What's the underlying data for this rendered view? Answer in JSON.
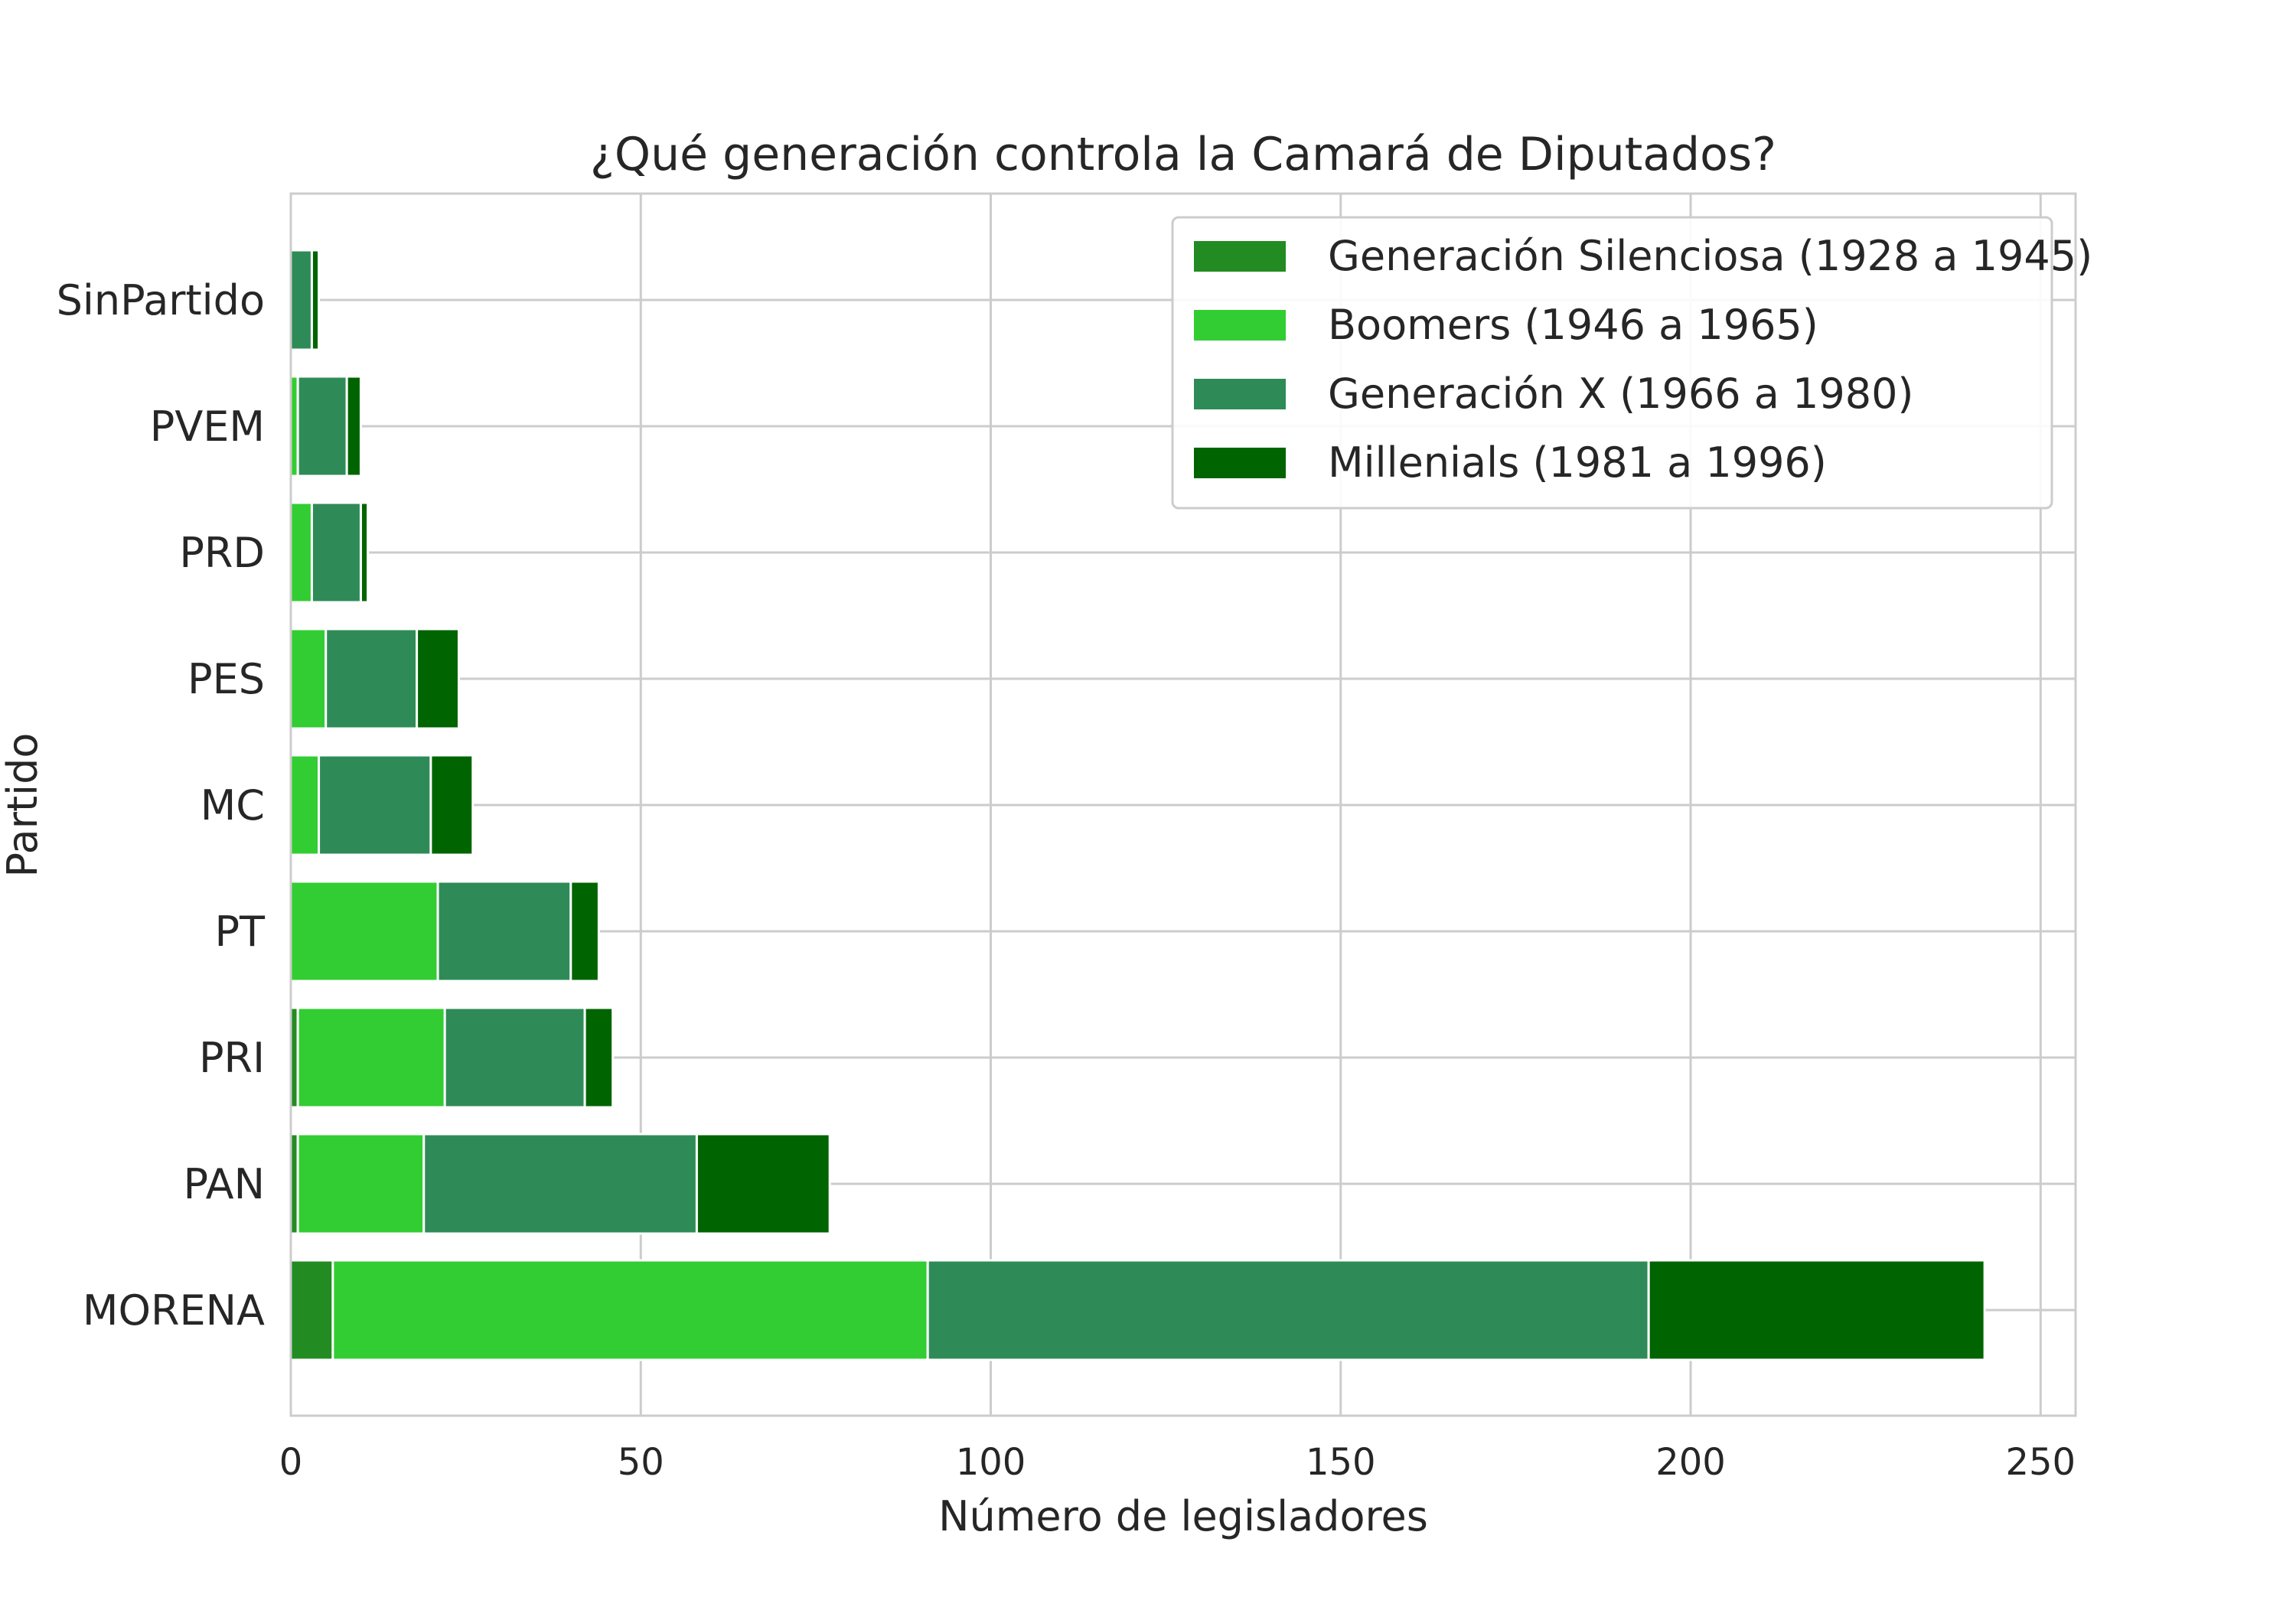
{
  "chart_data": {
    "type": "bar",
    "orientation": "horizontal",
    "stacked": true,
    "title": "¿Qué generación controla la Camará de Diputados?",
    "xlabel": "Número de legisladores",
    "ylabel": "Partido",
    "xlim": [
      0,
      255
    ],
    "xticks": [
      0,
      50,
      100,
      150,
      200,
      250
    ],
    "grid": true,
    "legend_position": "top-right",
    "categories": [
      "SinPartido",
      "PVEM",
      "PRD",
      "PES",
      "MC",
      "PT",
      "PRI",
      "PAN",
      "MORENA"
    ],
    "series": [
      {
        "name": "Generación Silenciosa (1928 a 1945)",
        "color": "#228B22",
        "values": [
          0,
          0,
          0,
          0,
          0,
          0,
          1,
          1,
          6
        ]
      },
      {
        "name": "Boomers (1946 a 1965)",
        "color": "#32CD32",
        "values": [
          0,
          1,
          3,
          5,
          4,
          21,
          21,
          18,
          85
        ]
      },
      {
        "name": "Generación X (1966 a 1980)",
        "color": "#2E8B57",
        "values": [
          3,
          7,
          7,
          13,
          16,
          19,
          20,
          39,
          103
        ]
      },
      {
        "name": "Millenials (1981 a 1996)",
        "color": "#006400",
        "values": [
          1,
          2,
          1,
          6,
          6,
          4,
          4,
          19,
          48
        ]
      }
    ]
  }
}
